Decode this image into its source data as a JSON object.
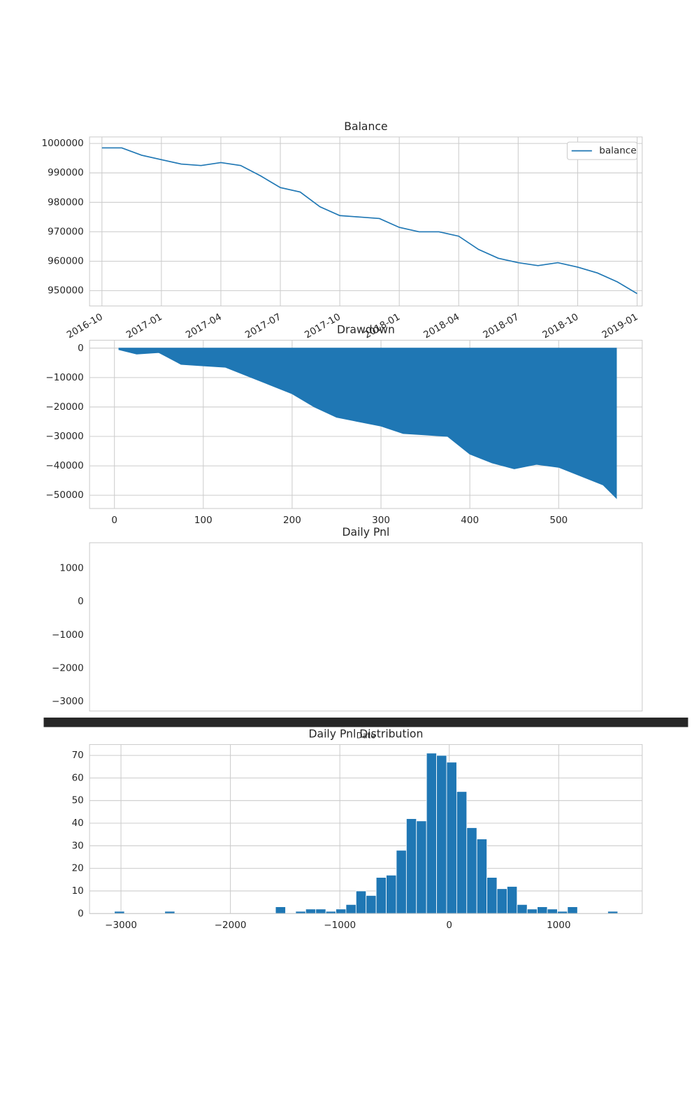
{
  "chart_data": [
    {
      "type": "line",
      "title": "Balance",
      "x": [
        "2016-10",
        "2016-11",
        "2016-12",
        "2017-01",
        "2017-02",
        "2017-03",
        "2017-04",
        "2017-05",
        "2017-06",
        "2017-07",
        "2017-08",
        "2017-09",
        "2017-10",
        "2017-11",
        "2017-12",
        "2018-01",
        "2018-02",
        "2018-03",
        "2018-04",
        "2018-05",
        "2018-06",
        "2018-07",
        "2018-08",
        "2018-09",
        "2018-10",
        "2018-11",
        "2018-12",
        "2019-01"
      ],
      "series": [
        {
          "name": "balance",
          "color": "#1f77b4",
          "values": [
            998500,
            998500,
            996000,
            994500,
            993000,
            992500,
            993500,
            992500,
            989000,
            985000,
            983500,
            978500,
            975500,
            975000,
            974500,
            971500,
            970000,
            970000,
            968500,
            964000,
            961000,
            959500,
            958500,
            959500,
            958000,
            956000,
            953000,
            949000
          ]
        }
      ],
      "xlim": [
        "2016-10",
        "2019-01"
      ],
      "xticks": [
        "2016-10",
        "2017-01",
        "2017-04",
        "2017-07",
        "2017-10",
        "2018-01",
        "2018-04",
        "2018-07",
        "2018-10",
        "2019-01"
      ],
      "ylim": [
        944800,
        1002200
      ],
      "yticks": [
        950000,
        960000,
        970000,
        980000,
        990000,
        1000000
      ],
      "grid": true,
      "legend": "upper right"
    },
    {
      "type": "area",
      "title": "Drawdown",
      "color": "#1f77b4",
      "x": [
        5,
        25,
        50,
        75,
        100,
        125,
        150,
        175,
        200,
        225,
        250,
        275,
        300,
        325,
        350,
        375,
        400,
        425,
        450,
        475,
        500,
        525,
        550,
        565
      ],
      "values": [
        -500,
        -2000,
        -1500,
        -5500,
        -6000,
        -6500,
        -9500,
        -12500,
        -15500,
        -20000,
        -23500,
        -25000,
        -26500,
        -29000,
        -29500,
        -30000,
        -36000,
        -39000,
        -41000,
        -39500,
        -40500,
        -43500,
        -46500,
        -51000
      ],
      "xlim": [
        -28,
        594
      ],
      "xticks": [
        0,
        100,
        200,
        300,
        400,
        500
      ],
      "ylim": [
        -54500,
        2700
      ],
      "yticks": [
        0,
        {
          "value": -10000,
          "label": "−10000"
        },
        {
          "value": -20000,
          "label": "−20000"
        },
        {
          "value": -30000,
          "label": "−30000"
        },
        {
          "value": -40000,
          "label": "−40000"
        },
        {
          "value": -50000,
          "label": "−50000"
        }
      ],
      "grid": true
    },
    {
      "type": "line",
      "title": "Daily Pnl",
      "xlabel": "Date",
      "ylim": [
        -3284,
        1765
      ],
      "yticks": [
        1000,
        0,
        {
          "value": -1000,
          "label": "−1000"
        },
        {
          "value": -2000,
          "label": "−2000"
        },
        {
          "value": -3000,
          "label": "−3000"
        }
      ],
      "grid": false
    },
    {
      "type": "histogram",
      "title": "Daily Pnl Distribution",
      "color": "#1f77b4",
      "bins": [
        -3060,
        -2968,
        -2876,
        -2784,
        -2692,
        -2600,
        -2508,
        -2416,
        -2324,
        -2232,
        -2140,
        -2048,
        -1956,
        -1864,
        -1772,
        -1680,
        -1588,
        -1496,
        -1404,
        -1312,
        -1220,
        -1128,
        -1036,
        -944,
        -852,
        -760,
        -668,
        -576,
        -484,
        -392,
        -300,
        -208,
        -116,
        -24,
        68,
        160,
        252,
        344,
        436,
        528,
        620,
        712,
        804,
        896,
        988,
        1080,
        1172,
        1264,
        1356,
        1448,
        1540
      ],
      "counts": [
        1,
        0,
        0,
        0,
        0,
        1,
        0,
        0,
        0,
        0,
        0,
        0,
        0,
        0,
        0,
        0,
        3,
        0,
        1,
        2,
        2,
        1,
        2,
        4,
        10,
        8,
        16,
        17,
        28,
        42,
        41,
        71,
        70,
        67,
        54,
        38,
        33,
        16,
        11,
        12,
        4,
        2,
        3,
        2,
        1,
        3,
        0,
        0,
        0,
        1
      ],
      "xlim": [
        -3287,
        1763
      ],
      "xticks": [
        {
          "value": -3000,
          "label": "−3000"
        },
        {
          "value": -2000,
          "label": "−2000"
        },
        {
          "value": -1000,
          "label": "−1000"
        },
        0,
        1000
      ],
      "ylim": [
        0,
        74.8
      ],
      "yticks": [
        0,
        10,
        20,
        30,
        40,
        50,
        60,
        70
      ],
      "grid": true
    }
  ]
}
